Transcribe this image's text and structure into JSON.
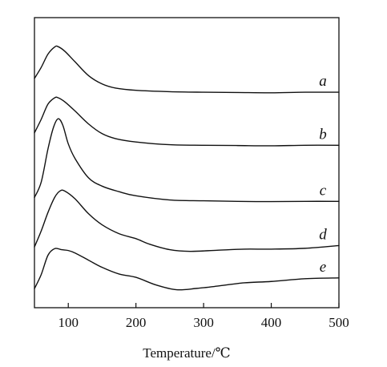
{
  "chart_data": {
    "type": "line",
    "title": "",
    "xlabel": "Temperature/℃",
    "ylabel": "",
    "xlim": [
      50,
      500
    ],
    "xticks": [
      100,
      200,
      300,
      400,
      500
    ],
    "yticks_shown": false,
    "grid": false,
    "series": [
      {
        "name": "a",
        "x": [
          50,
          60,
          70,
          80,
          85,
          95,
          110,
          130,
          150,
          170,
          200,
          250,
          300,
          350,
          400,
          450,
          500
        ],
        "y": [
          8.3,
          8.7,
          9.18,
          9.44,
          9.45,
          9.28,
          8.9,
          8.4,
          8.1,
          7.95,
          7.87,
          7.82,
          7.8,
          7.79,
          7.78,
          7.8,
          7.8
        ]
      },
      {
        "name": "b",
        "x": [
          50,
          60,
          70,
          80,
          85,
          95,
          110,
          130,
          150,
          170,
          200,
          250,
          300,
          350,
          400,
          450,
          500
        ],
        "y": [
          6.33,
          6.82,
          7.37,
          7.6,
          7.6,
          7.45,
          7.12,
          6.65,
          6.3,
          6.12,
          6.0,
          5.9,
          5.88,
          5.87,
          5.86,
          5.88,
          5.88
        ]
      },
      {
        "name": "c",
        "x": [
          50,
          60,
          70,
          78,
          85,
          92,
          100,
          110,
          130,
          150,
          175,
          200,
          250,
          300,
          350,
          400,
          450,
          500
        ],
        "y": [
          3.99,
          4.55,
          5.75,
          6.52,
          6.84,
          6.6,
          5.93,
          5.4,
          4.7,
          4.4,
          4.2,
          4.05,
          3.9,
          3.87,
          3.85,
          3.84,
          3.85,
          3.85
        ]
      },
      {
        "name": "d",
        "x": [
          50,
          60,
          70,
          80,
          88,
          95,
          110,
          130,
          150,
          175,
          200,
          220,
          250,
          280,
          320,
          360,
          400,
          450,
          500
        ],
        "y": [
          2.2,
          2.78,
          3.45,
          4.0,
          4.23,
          4.22,
          3.94,
          3.4,
          3.0,
          2.68,
          2.5,
          2.3,
          2.1,
          2.04,
          2.08,
          2.12,
          2.12,
          2.15,
          2.25
        ]
      },
      {
        "name": "e",
        "x": [
          50,
          60,
          70,
          80,
          90,
          100,
          110,
          130,
          150,
          175,
          200,
          230,
          260,
          290,
          320,
          360,
          400,
          450,
          500
        ],
        "y": [
          0.69,
          1.2,
          1.9,
          2.14,
          2.1,
          2.07,
          1.98,
          1.72,
          1.46,
          1.22,
          1.1,
          0.82,
          0.65,
          0.7,
          0.78,
          0.9,
          0.95,
          1.05,
          1.08
        ]
      }
    ],
    "series_labels": [
      "a",
      "b",
      "c",
      "d",
      "e"
    ]
  }
}
